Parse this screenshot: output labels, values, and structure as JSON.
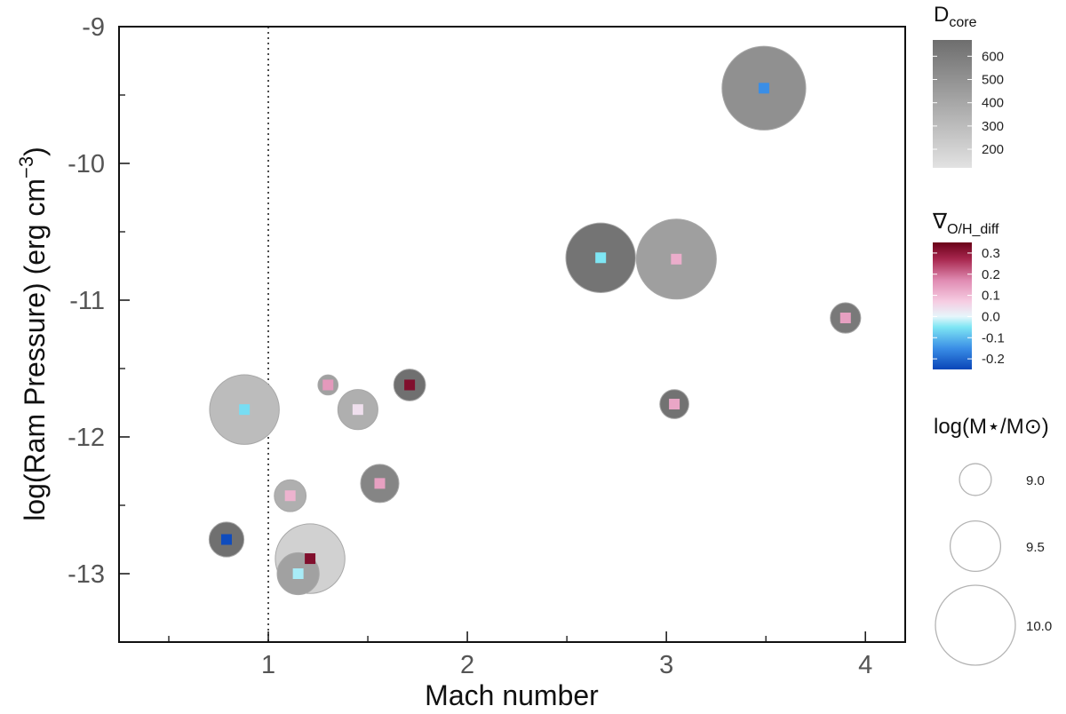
{
  "chart_data": {
    "type": "scatter",
    "xlabel": "Mach number",
    "ylabel": "log(Ram Pressure) (erg cm",
    "ylabel_exp": "−3",
    "ylabel_close": ")",
    "xlim": [
      0.25,
      4.2
    ],
    "ylim": [
      -13.5,
      -9
    ],
    "xticks": [
      1,
      2,
      3,
      4
    ],
    "xtick_labels": [
      "1",
      "2",
      "3",
      "4"
    ],
    "yticks": [
      -9,
      -10,
      -11,
      -12,
      -13
    ],
    "ytick_labels": [
      "-9",
      "-10",
      "-11",
      "-12",
      "-13"
    ],
    "x_minor_ticks": [
      0.5,
      1.5,
      2.5,
      3.5
    ],
    "y_minor_ticks": [
      -9.5,
      -10.5,
      -11.5,
      -12.5,
      -13.5
    ],
    "reference_line": {
      "x": 1,
      "style": "dotted"
    },
    "grid": false,
    "points": [
      {
        "mach": 3.49,
        "log_ram_pressure": -9.45,
        "log_mstar": 10.05,
        "d_core": 510,
        "grad_oh_diff": -0.15
      },
      {
        "mach": 2.67,
        "log_ram_pressure": -10.69,
        "log_mstar": 9.85,
        "d_core": 640,
        "grad_oh_diff": -0.05
      },
      {
        "mach": 3.05,
        "log_ram_pressure": -10.7,
        "log_mstar": 10.0,
        "d_core": 440,
        "grad_oh_diff": 0.12
      },
      {
        "mach": 3.9,
        "log_ram_pressure": -11.13,
        "log_mstar": 8.95,
        "d_core": 620,
        "grad_oh_diff": 0.14
      },
      {
        "mach": 3.04,
        "log_ram_pressure": -11.76,
        "log_mstar": 8.9,
        "d_core": 650,
        "grad_oh_diff": 0.13
      },
      {
        "mach": 1.71,
        "log_ram_pressure": -11.62,
        "log_mstar": 9.0,
        "d_core": 660,
        "grad_oh_diff": 0.32
      },
      {
        "mach": 1.3,
        "log_ram_pressure": -11.62,
        "log_mstar": 8.5,
        "d_core": 430,
        "grad_oh_diff": 0.15
      },
      {
        "mach": 1.45,
        "log_ram_pressure": -11.8,
        "log_mstar": 9.25,
        "d_core": 360,
        "grad_oh_diff": 0.04
      },
      {
        "mach": 0.88,
        "log_ram_pressure": -11.8,
        "log_mstar": 9.85,
        "d_core": 300,
        "grad_oh_diff": -0.06
      },
      {
        "mach": 1.56,
        "log_ram_pressure": -12.34,
        "log_mstar": 9.2,
        "d_core": 560,
        "grad_oh_diff": 0.14
      },
      {
        "mach": 1.11,
        "log_ram_pressure": -12.43,
        "log_mstar": 9.0,
        "d_core": 360,
        "grad_oh_diff": 0.11
      },
      {
        "mach": 0.79,
        "log_ram_pressure": -12.75,
        "log_mstar": 9.1,
        "d_core": 660,
        "grad_oh_diff": -0.24
      },
      {
        "mach": 1.21,
        "log_ram_pressure": -12.89,
        "log_mstar": 9.85,
        "d_core": 200,
        "grad_oh_diff": 0.32
      },
      {
        "mach": 1.15,
        "log_ram_pressure": -13.0,
        "log_mstar": 9.3,
        "d_core": 430,
        "grad_oh_diff": -0.03
      }
    ],
    "legends": {
      "dcore": {
        "title_main": "D",
        "title_sub": "core",
        "ticks": [
          600,
          500,
          400,
          300,
          200
        ],
        "tick_labels": [
          "600",
          "500",
          "400",
          "300",
          "200"
        ],
        "range": [
          120,
          670
        ],
        "color_low": "#e2e2e2",
        "color_high": "#6e6e6e"
      },
      "gradient": {
        "title_main": "∇",
        "title_sub": "O/H_diff",
        "ticks": [
          0.3,
          0.2,
          0.1,
          0.0,
          -0.1,
          -0.2
        ],
        "tick_labels": [
          "0.3",
          "0.2",
          "0.1",
          "0.0",
          "-0.1",
          "-0.2"
        ],
        "range": [
          -0.25,
          0.35
        ],
        "stops": [
          {
            "v": -0.25,
            "color": "#0a45b8"
          },
          {
            "v": -0.15,
            "color": "#3a8ee6"
          },
          {
            "v": -0.05,
            "color": "#7ee6f4"
          },
          {
            "v": 0.0,
            "color": "#e6f6fb"
          },
          {
            "v": 0.07,
            "color": "#f6cde2"
          },
          {
            "v": 0.17,
            "color": "#e08cb3"
          },
          {
            "v": 0.27,
            "color": "#a8284f"
          },
          {
            "v": 0.35,
            "color": "#6a0018"
          }
        ]
      },
      "mass": {
        "title": "log(M⋆/M⊙)",
        "entries": [
          {
            "value": 9.0,
            "label": "9.0"
          },
          {
            "value": 9.5,
            "label": "9.5"
          },
          {
            "value": 10.0,
            "label": "10.0"
          }
        ]
      }
    },
    "colors": {
      "axis": "#111111",
      "bubble_edge": "#a8a8a8",
      "legend_circle_edge": "#b4b4b4"
    }
  }
}
